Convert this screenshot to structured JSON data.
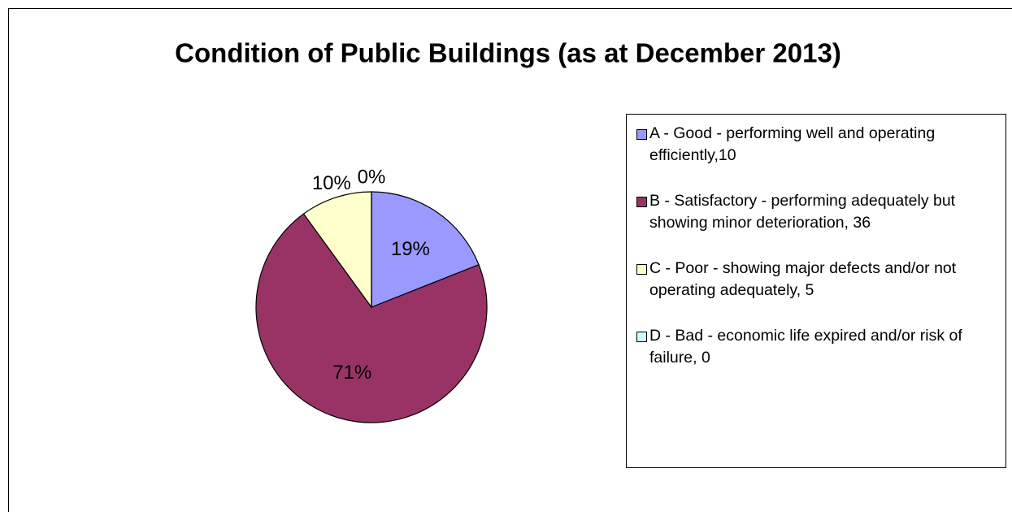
{
  "chart_data": {
    "type": "pie",
    "title": "Condition of Public Buildings (as at December 2013)",
    "categories": [
      "A - Good - performing well and operating efficiently,10",
      "B - Satisfactory - performing adequately but showing minor deterioration, 36",
      "C - Poor - showing major defects and/or not operating adequately, 5",
      "D - Bad - economic life expired and/or risk of failure, 0"
    ],
    "values": [
      19,
      71,
      10,
      0
    ],
    "value_labels": [
      "19%",
      "71%",
      "10%",
      "0%"
    ],
    "colors": [
      "#9999ff",
      "#993366",
      "#ffffcc",
      "#ccffff"
    ],
    "legend": "right"
  }
}
